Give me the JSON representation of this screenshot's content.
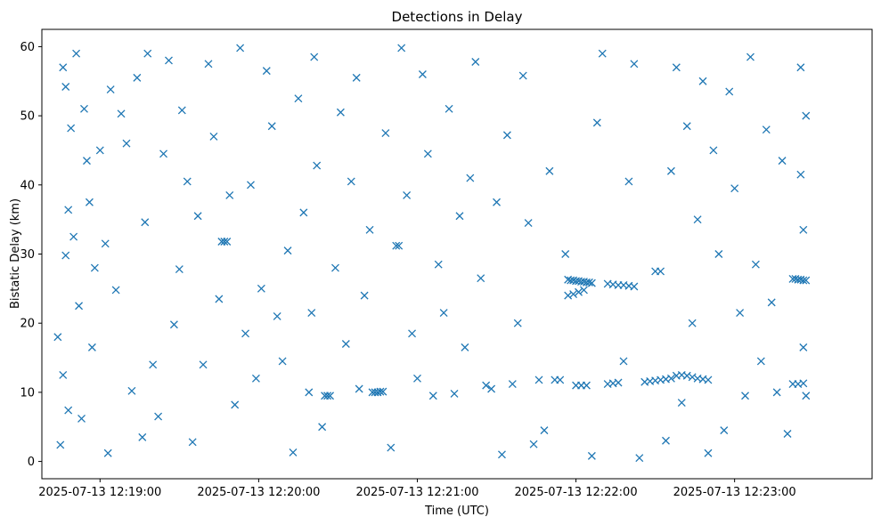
{
  "chart_data": {
    "type": "scatter",
    "title": "Detections in Delay",
    "xlabel": "Time (UTC)",
    "ylabel": "Bistatic Delay (km)",
    "marker": "x",
    "color": "#1f77b4",
    "grid": false,
    "legend": "none",
    "x_ticks": [
      "2025-07-13 12:19:00",
      "2025-07-13 12:20:00",
      "2025-07-13 12:21:00",
      "2025-07-13 12:22:00",
      "2025-07-13 12:23:00"
    ],
    "y_ticks": [
      "0",
      "10",
      "20",
      "30",
      "40",
      "50",
      "60"
    ],
    "xlim": [
      "2025-07-13 12:18:38",
      "2025-07-13 12:23:52"
    ],
    "ylim": [
      -2.5,
      62.5
    ],
    "series": [
      {
        "points": [
          [
            "2025-07-13 12:18:44",
            18.0
          ],
          [
            "2025-07-13 12:18:45",
            2.4
          ],
          [
            "2025-07-13 12:18:46",
            57.0
          ],
          [
            "2025-07-13 12:18:47",
            54.2
          ],
          [
            "2025-07-13 12:18:46",
            12.5
          ],
          [
            "2025-07-13 12:18:47",
            29.8
          ],
          [
            "2025-07-13 12:18:48",
            36.4
          ],
          [
            "2025-07-13 12:18:48",
            7.4
          ],
          [
            "2025-07-13 12:18:49",
            48.2
          ],
          [
            "2025-07-13 12:18:50",
            32.5
          ],
          [
            "2025-07-13 12:18:51",
            59.0
          ],
          [
            "2025-07-13 12:18:52",
            22.5
          ],
          [
            "2025-07-13 12:18:53",
            6.2
          ],
          [
            "2025-07-13 12:18:54",
            51.0
          ],
          [
            "2025-07-13 12:18:55",
            43.5
          ],
          [
            "2025-07-13 12:18:56",
            37.5
          ],
          [
            "2025-07-13 12:18:57",
            16.5
          ],
          [
            "2025-07-13 12:18:58",
            28.0
          ],
          [
            "2025-07-13 12:19:00",
            45.0
          ],
          [
            "2025-07-13 12:19:02",
            31.5
          ],
          [
            "2025-07-13 12:19:03",
            1.2
          ],
          [
            "2025-07-13 12:19:04",
            53.8
          ],
          [
            "2025-07-13 12:19:06",
            24.8
          ],
          [
            "2025-07-13 12:19:08",
            50.3
          ],
          [
            "2025-07-13 12:19:10",
            46.0
          ],
          [
            "2025-07-13 12:19:12",
            10.2
          ],
          [
            "2025-07-13 12:19:14",
            55.5
          ],
          [
            "2025-07-13 12:19:16",
            3.5
          ],
          [
            "2025-07-13 12:19:17",
            34.6
          ],
          [
            "2025-07-13 12:19:18",
            59.0
          ],
          [
            "2025-07-13 12:19:20",
            14.0
          ],
          [
            "2025-07-13 12:19:22",
            6.5
          ],
          [
            "2025-07-13 12:19:24",
            44.5
          ],
          [
            "2025-07-13 12:19:26",
            58.0
          ],
          [
            "2025-07-13 12:19:28",
            19.8
          ],
          [
            "2025-07-13 12:19:30",
            27.8
          ],
          [
            "2025-07-13 12:19:31",
            50.8
          ],
          [
            "2025-07-13 12:19:33",
            40.5
          ],
          [
            "2025-07-13 12:19:35",
            2.8
          ],
          [
            "2025-07-13 12:19:37",
            35.5
          ],
          [
            "2025-07-13 12:19:39",
            14.0
          ],
          [
            "2025-07-13 12:19:41",
            57.5
          ],
          [
            "2025-07-13 12:19:43",
            47.0
          ],
          [
            "2025-07-13 12:19:45",
            23.5
          ],
          [
            "2025-07-13 12:19:46",
            31.8
          ],
          [
            "2025-07-13 12:19:47",
            31.8
          ],
          [
            "2025-07-13 12:19:48",
            31.8
          ],
          [
            "2025-07-13 12:19:49",
            38.5
          ],
          [
            "2025-07-13 12:19:51",
            8.2
          ],
          [
            "2025-07-13 12:19:53",
            59.8
          ],
          [
            "2025-07-13 12:19:55",
            18.5
          ],
          [
            "2025-07-13 12:19:57",
            40.0
          ],
          [
            "2025-07-13 12:19:59",
            12.0
          ],
          [
            "2025-07-13 12:20:01",
            25.0
          ],
          [
            "2025-07-13 12:20:03",
            56.5
          ],
          [
            "2025-07-13 12:20:05",
            48.5
          ],
          [
            "2025-07-13 12:20:07",
            21.0
          ],
          [
            "2025-07-13 12:20:09",
            14.5
          ],
          [
            "2025-07-13 12:20:11",
            30.5
          ],
          [
            "2025-07-13 12:20:13",
            1.3
          ],
          [
            "2025-07-13 12:20:15",
            52.5
          ],
          [
            "2025-07-13 12:20:17",
            36.0
          ],
          [
            "2025-07-13 12:20:19",
            10.0
          ],
          [
            "2025-07-13 12:20:20",
            21.5
          ],
          [
            "2025-07-13 12:20:21",
            58.5
          ],
          [
            "2025-07-13 12:20:22",
            42.8
          ],
          [
            "2025-07-13 12:20:24",
            5.0
          ],
          [
            "2025-07-13 12:20:25",
            9.5
          ],
          [
            "2025-07-13 12:20:26",
            9.5
          ],
          [
            "2025-07-13 12:20:27",
            9.5
          ],
          [
            "2025-07-13 12:20:29",
            28.0
          ],
          [
            "2025-07-13 12:20:31",
            50.5
          ],
          [
            "2025-07-13 12:20:33",
            17.0
          ],
          [
            "2025-07-13 12:20:35",
            40.5
          ],
          [
            "2025-07-13 12:20:37",
            55.5
          ],
          [
            "2025-07-13 12:20:38",
            10.5
          ],
          [
            "2025-07-13 12:20:40",
            24.0
          ],
          [
            "2025-07-13 12:20:42",
            33.5
          ],
          [
            "2025-07-13 12:20:43",
            10.0
          ],
          [
            "2025-07-13 12:20:44",
            10.0
          ],
          [
            "2025-07-13 12:20:45",
            10.0
          ],
          [
            "2025-07-13 12:20:46",
            10.1
          ],
          [
            "2025-07-13 12:20:47",
            10.1
          ],
          [
            "2025-07-13 12:20:48",
            47.5
          ],
          [
            "2025-07-13 12:20:50",
            2.0
          ],
          [
            "2025-07-13 12:20:52",
            31.2
          ],
          [
            "2025-07-13 12:20:53",
            31.2
          ],
          [
            "2025-07-13 12:20:54",
            59.8
          ],
          [
            "2025-07-13 12:20:56",
            38.5
          ],
          [
            "2025-07-13 12:20:58",
            18.5
          ],
          [
            "2025-07-13 12:21:00",
            12.0
          ],
          [
            "2025-07-13 12:21:02",
            56.0
          ],
          [
            "2025-07-13 12:21:04",
            44.5
          ],
          [
            "2025-07-13 12:21:06",
            9.5
          ],
          [
            "2025-07-13 12:21:08",
            28.5
          ],
          [
            "2025-07-13 12:21:10",
            21.5
          ],
          [
            "2025-07-13 12:21:12",
            51.0
          ],
          [
            "2025-07-13 12:21:14",
            9.8
          ],
          [
            "2025-07-13 12:21:16",
            35.5
          ],
          [
            "2025-07-13 12:21:18",
            16.5
          ],
          [
            "2025-07-13 12:21:20",
            41.0
          ],
          [
            "2025-07-13 12:21:22",
            57.8
          ],
          [
            "2025-07-13 12:21:24",
            26.5
          ],
          [
            "2025-07-13 12:21:26",
            11.0
          ],
          [
            "2025-07-13 12:21:28",
            10.5
          ],
          [
            "2025-07-13 12:21:30",
            37.5
          ],
          [
            "2025-07-13 12:21:32",
            1.0
          ],
          [
            "2025-07-13 12:21:34",
            47.2
          ],
          [
            "2025-07-13 12:21:36",
            11.2
          ],
          [
            "2025-07-13 12:21:38",
            20.0
          ],
          [
            "2025-07-13 12:21:40",
            55.8
          ],
          [
            "2025-07-13 12:21:42",
            34.5
          ],
          [
            "2025-07-13 12:21:44",
            2.5
          ],
          [
            "2025-07-13 12:21:46",
            11.8
          ],
          [
            "2025-07-13 12:21:48",
            4.5
          ],
          [
            "2025-07-13 12:21:50",
            42.0
          ],
          [
            "2025-07-13 12:21:52",
            11.8
          ],
          [
            "2025-07-13 12:21:54",
            11.8
          ],
          [
            "2025-07-13 12:21:56",
            30.0
          ],
          [
            "2025-07-13 12:21:57",
            26.3
          ],
          [
            "2025-07-13 12:21:58",
            26.2
          ],
          [
            "2025-07-13 12:21:59",
            26.2
          ],
          [
            "2025-07-13 12:22:00",
            26.1
          ],
          [
            "2025-07-13 12:22:01",
            26.1
          ],
          [
            "2025-07-13 12:22:02",
            26.0
          ],
          [
            "2025-07-13 12:22:03",
            26.0
          ],
          [
            "2025-07-13 12:22:04",
            25.9
          ],
          [
            "2025-07-13 12:22:05",
            25.9
          ],
          [
            "2025-07-13 12:22:06",
            25.8
          ],
          [
            "2025-07-13 12:21:57",
            24.0
          ],
          [
            "2025-07-13 12:21:59",
            24.2
          ],
          [
            "2025-07-13 12:22:01",
            24.5
          ],
          [
            "2025-07-13 12:22:03",
            24.8
          ],
          [
            "2025-07-13 12:22:00",
            11.0
          ],
          [
            "2025-07-13 12:22:02",
            11.0
          ],
          [
            "2025-07-13 12:22:04",
            11.0
          ],
          [
            "2025-07-13 12:22:06",
            0.8
          ],
          [
            "2025-07-13 12:22:08",
            49.0
          ],
          [
            "2025-07-13 12:22:10",
            59.0
          ],
          [
            "2025-07-13 12:22:12",
            25.7
          ],
          [
            "2025-07-13 12:22:14",
            25.6
          ],
          [
            "2025-07-13 12:22:16",
            25.5
          ],
          [
            "2025-07-13 12:22:18",
            25.5
          ],
          [
            "2025-07-13 12:22:20",
            25.4
          ],
          [
            "2025-07-13 12:22:22",
            25.3
          ],
          [
            "2025-07-13 12:22:12",
            11.2
          ],
          [
            "2025-07-13 12:22:14",
            11.3
          ],
          [
            "2025-07-13 12:22:16",
            11.4
          ],
          [
            "2025-07-13 12:22:18",
            14.5
          ],
          [
            "2025-07-13 12:22:20",
            40.5
          ],
          [
            "2025-07-13 12:22:22",
            57.5
          ],
          [
            "2025-07-13 12:22:24",
            0.5
          ],
          [
            "2025-07-13 12:22:26",
            11.5
          ],
          [
            "2025-07-13 12:22:28",
            11.6
          ],
          [
            "2025-07-13 12:22:30",
            11.7
          ],
          [
            "2025-07-13 12:22:32",
            11.8
          ],
          [
            "2025-07-13 12:22:34",
            11.9
          ],
          [
            "2025-07-13 12:22:36",
            12.0
          ],
          [
            "2025-07-13 12:22:38",
            12.4
          ],
          [
            "2025-07-13 12:22:40",
            12.5
          ],
          [
            "2025-07-13 12:22:42",
            12.4
          ],
          [
            "2025-07-13 12:22:44",
            12.2
          ],
          [
            "2025-07-13 12:22:46",
            12.0
          ],
          [
            "2025-07-13 12:22:48",
            11.9
          ],
          [
            "2025-07-13 12:22:50",
            11.8
          ],
          [
            "2025-07-13 12:22:30",
            27.5
          ],
          [
            "2025-07-13 12:22:32",
            27.5
          ],
          [
            "2025-07-13 12:22:34",
            3.0
          ],
          [
            "2025-07-13 12:22:36",
            42.0
          ],
          [
            "2025-07-13 12:22:38",
            57.0
          ],
          [
            "2025-07-13 12:22:40",
            8.5
          ],
          [
            "2025-07-13 12:22:42",
            48.5
          ],
          [
            "2025-07-13 12:22:44",
            20.0
          ],
          [
            "2025-07-13 12:22:46",
            35.0
          ],
          [
            "2025-07-13 12:22:48",
            55.0
          ],
          [
            "2025-07-13 12:22:50",
            1.2
          ],
          [
            "2025-07-13 12:22:52",
            45.0
          ],
          [
            "2025-07-13 12:22:54",
            30.0
          ],
          [
            "2025-07-13 12:22:56",
            4.5
          ],
          [
            "2025-07-13 12:22:58",
            53.5
          ],
          [
            "2025-07-13 12:23:00",
            39.5
          ],
          [
            "2025-07-13 12:23:02",
            21.5
          ],
          [
            "2025-07-13 12:23:04",
            9.5
          ],
          [
            "2025-07-13 12:23:06",
            58.5
          ],
          [
            "2025-07-13 12:23:08",
            28.5
          ],
          [
            "2025-07-13 12:23:10",
            14.5
          ],
          [
            "2025-07-13 12:23:12",
            48.0
          ],
          [
            "2025-07-13 12:23:14",
            23.0
          ],
          [
            "2025-07-13 12:23:16",
            10.0
          ],
          [
            "2025-07-13 12:23:18",
            43.5
          ],
          [
            "2025-07-13 12:23:20",
            4.0
          ],
          [
            "2025-07-13 12:23:22",
            26.4
          ],
          [
            "2025-07-13 12:23:23",
            26.4
          ],
          [
            "2025-07-13 12:23:24",
            26.3
          ],
          [
            "2025-07-13 12:23:25",
            26.3
          ],
          [
            "2025-07-13 12:23:26",
            26.2
          ],
          [
            "2025-07-13 12:23:27",
            26.2
          ],
          [
            "2025-07-13 12:23:22",
            11.2
          ],
          [
            "2025-07-13 12:23:24",
            11.2
          ],
          [
            "2025-07-13 12:23:26",
            11.3
          ],
          [
            "2025-07-13 12:23:25",
            57.0
          ],
          [
            "2025-07-13 12:23:26",
            33.5
          ],
          [
            "2025-07-13 12:23:27",
            50.0
          ],
          [
            "2025-07-13 12:23:27",
            9.5
          ],
          [
            "2025-07-13 12:23:26",
            16.5
          ],
          [
            "2025-07-13 12:23:25",
            41.5
          ]
        ]
      }
    ]
  }
}
